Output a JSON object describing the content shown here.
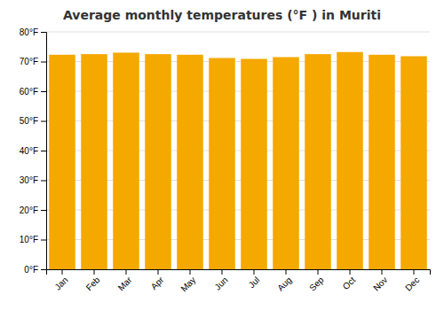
{
  "chart_data": {
    "type": "bar",
    "title": "Average monthly temperatures (°F ) in Muriti",
    "categories": [
      "Jan",
      "Feb",
      "Mar",
      "Apr",
      "May",
      "Jun",
      "Jul",
      "Aug",
      "Sep",
      "Oct",
      "Nov",
      "Dec"
    ],
    "values": [
      72.3,
      72.5,
      73.0,
      72.5,
      72.3,
      71.2,
      70.9,
      71.5,
      72.5,
      73.2,
      72.3,
      71.8
    ],
    "color": "#F5A800",
    "ylim": [
      0,
      80
    ],
    "yticks": [
      {
        "value": 0,
        "label": "0°F"
      },
      {
        "value": 10,
        "label": "10°F"
      },
      {
        "value": 20,
        "label": "20°F"
      },
      {
        "value": 30,
        "label": "30°F"
      },
      {
        "value": 40,
        "label": "40°F"
      },
      {
        "value": 50,
        "label": "50°F"
      },
      {
        "value": 60,
        "label": "60°F"
      },
      {
        "value": 70,
        "label": "70°F"
      },
      {
        "value": 80,
        "label": "80°F"
      }
    ],
    "grid": true
  }
}
